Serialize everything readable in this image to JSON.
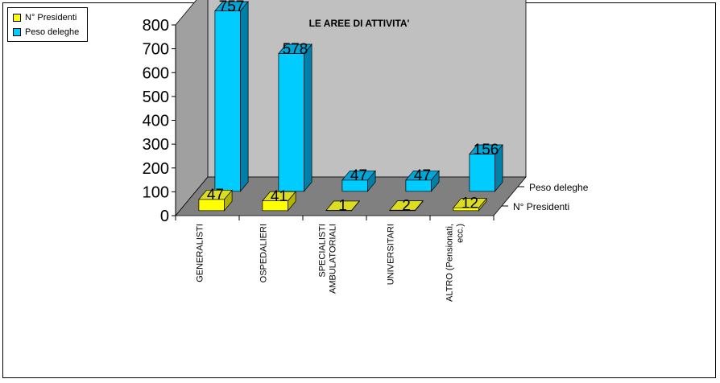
{
  "chart_data": {
    "type": "bar",
    "title": "LE AREE DI ATTIVITA'",
    "categories": [
      "GENERALISTI",
      "OSPEDALIERI",
      "SPECIALISTI AMBULATORIALI",
      "UNIVERSITARI",
      "ALTRO (Pensionati, ecc.)"
    ],
    "category_lines": [
      [
        "GENERALISTI"
      ],
      [
        "OSPEDALIERI"
      ],
      [
        "SPECIALISTI",
        "AMBULATORIALI"
      ],
      [
        "UNIVERSITARI"
      ],
      [
        "ALTRO (Pensionati,",
        "ecc.)"
      ]
    ],
    "series": [
      {
        "name": "N° Presidenti",
        "values": [
          47,
          41,
          1,
          2,
          12
        ],
        "color": "#ffff00",
        "color_dark": "#b3b300",
        "color_mid": "#dcdc20"
      },
      {
        "name": "Peso deleghe",
        "values": [
          757,
          578,
          47,
          47,
          156
        ],
        "color": "#00ccff",
        "color_dark": "#0080a8",
        "color_mid": "#00a6d6"
      }
    ],
    "depth_labels": [
      "Peso deleghe",
      "N° Presidenti"
    ],
    "yticks": [
      0,
      100,
      200,
      300,
      400,
      500,
      600,
      700,
      800
    ],
    "ylim": [
      0,
      800
    ],
    "grid": false,
    "legend_position": "top-left",
    "wall_color": "#c0c0c0",
    "floor_color": "#808080"
  }
}
